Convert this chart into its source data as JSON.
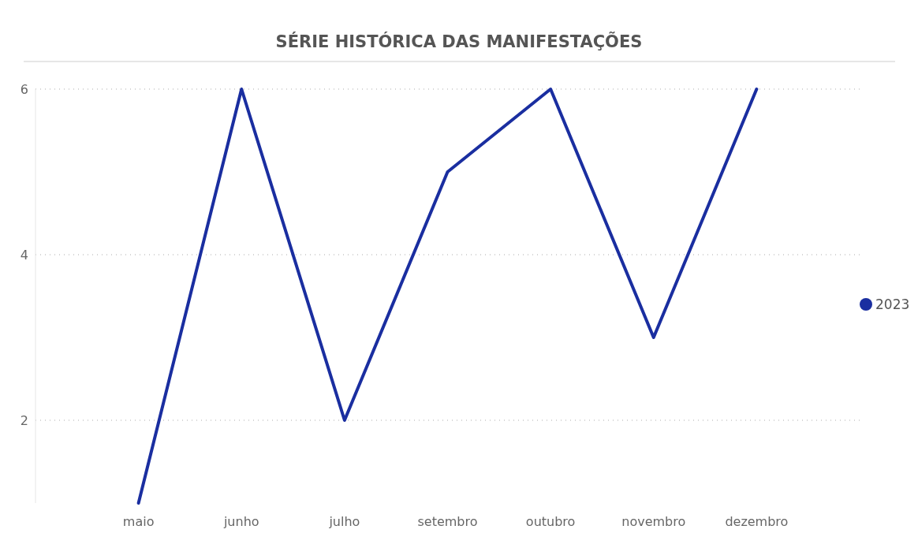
{
  "chart_data": {
    "type": "line",
    "title": "SÉRIE HISTÓRICA DAS MANIFESTAÇÕES",
    "categories": [
      "maio",
      "junho",
      "julho",
      "setembro",
      "outubro",
      "novembro",
      "dezembro"
    ],
    "series": [
      {
        "name": "2023",
        "color": "#1a2ea0",
        "values": [
          1,
          6,
          2,
          5,
          6,
          3,
          6
        ]
      }
    ],
    "ylim": [
      1,
      6
    ],
    "yticks": [
      2,
      4,
      6
    ],
    "grid": "y",
    "legend": "right",
    "marker": "none",
    "line_style": "solid"
  }
}
